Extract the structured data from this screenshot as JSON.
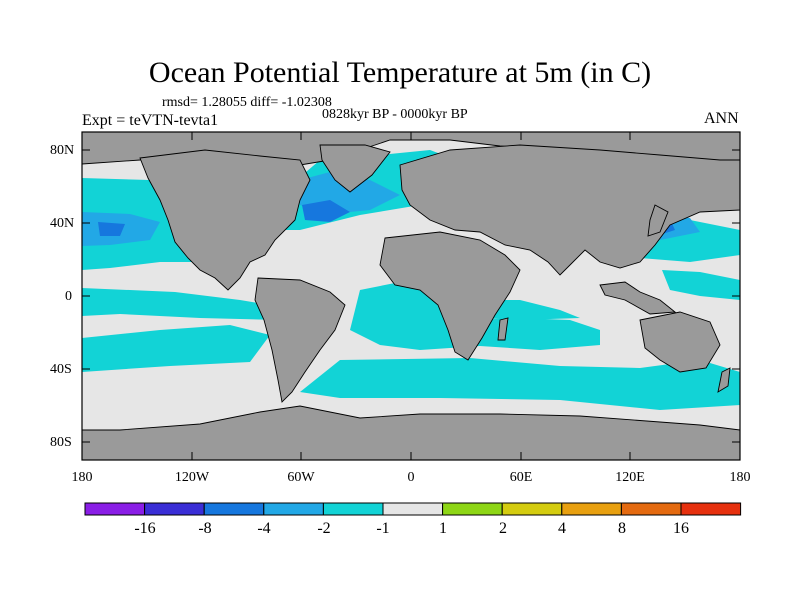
{
  "map": {
    "title": "Ocean Potential Temperature at 5m (in C)",
    "stats": "rmsd= 1.28055 diff= -1.02308",
    "period": "0828kyr BP - 0000kyr BP",
    "experiment": "Expt = teVTN-tevta1",
    "season": "ANN",
    "lat_labels": [
      "80N",
      "40N",
      "0",
      "40S",
      "80S"
    ],
    "lon_labels": [
      "180",
      "120W",
      "60W",
      "0",
      "60E",
      "120E",
      "180"
    ],
    "colors": {
      "land": "#9a9a9a",
      "near_zero": "#e6e6e6",
      "cyan": "#12d3d6",
      "light_blue": "#22a8e6",
      "mid_blue": "#1677de"
    }
  },
  "colorbar": {
    "labels": [
      "-16",
      "-8",
      "-4",
      "-2",
      "-1",
      "1",
      "2",
      "4",
      "8",
      "16"
    ],
    "colors": [
      "#8a1ee6",
      "#3a2ed6",
      "#1677de",
      "#22a8e6",
      "#12d3d6",
      "#e6e6e6",
      "#8ed616",
      "#d4cc10",
      "#e8a010",
      "#e46a10",
      "#e6300e"
    ]
  }
}
